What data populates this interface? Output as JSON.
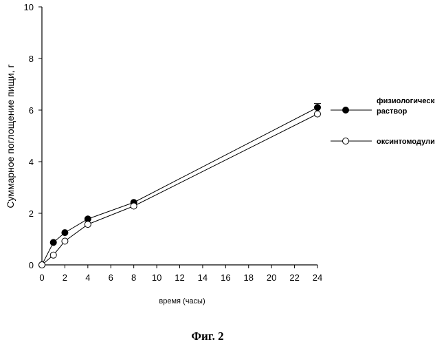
{
  "chart_data": {
    "type": "line",
    "title": "",
    "xlabel": "время (часы)",
    "ylabel": "Суммарное поглощение пищи, г",
    "xlim": [
      0,
      24
    ],
    "ylim": [
      0,
      10
    ],
    "xticks": [
      0,
      2,
      4,
      6,
      8,
      10,
      12,
      14,
      16,
      18,
      20,
      22,
      24
    ],
    "yticks": [
      0,
      2,
      4,
      6,
      8,
      10
    ],
    "grid": false,
    "legend_placement": "right",
    "series": [
      {
        "name": "физиологический раствор",
        "name_lines": [
          "физиологический",
          "раствор"
        ],
        "marker": "filled-circle",
        "x": [
          0,
          1,
          2,
          4,
          8,
          24
        ],
        "y": [
          0,
          0.87,
          1.25,
          1.78,
          2.42,
          6.1
        ],
        "error_upper": [
          0,
          0,
          0,
          0,
          0,
          0.15
        ]
      },
      {
        "name": "оксинтомодулин",
        "name_lines": [
          "оксинтомодулин"
        ],
        "marker": "open-circle",
        "x": [
          0,
          1,
          2,
          4,
          8,
          24
        ],
        "y": [
          0,
          0.38,
          0.92,
          1.57,
          2.28,
          5.85
        ],
        "error_upper": [
          0,
          0,
          0,
          0,
          0,
          0
        ]
      }
    ]
  },
  "caption": "Фиг. 2"
}
